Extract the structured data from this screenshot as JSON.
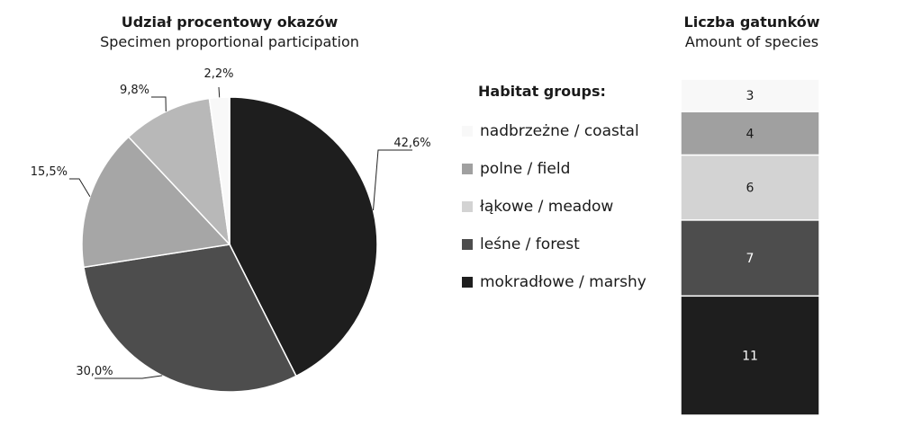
{
  "pie_title": {
    "main": "Udział procentowy okazów",
    "sub": "Specimen proportional participation"
  },
  "bar_title": {
    "main": "Liczba gatunków",
    "sub": "Amount of species"
  },
  "legend": {
    "title": "Habitat groups:",
    "items": [
      {
        "label": "nadbrzeżne / coastal",
        "color": "#f8f8f8"
      },
      {
        "label": "polne / field",
        "color": "#a0a0a0"
      },
      {
        "label": "łąkowe / meadow",
        "color": "#d3d3d3"
      },
      {
        "label": "leśne / forest",
        "color": "#4d4d4d"
      },
      {
        "label": "mokradłowe / marshy",
        "color": "#1e1e1e"
      }
    ]
  },
  "chart_data": [
    {
      "type": "pie",
      "title": "Udział procentowy okazów",
      "subtitle": "Specimen proportional participation",
      "labels": [
        "mokradłowe / marshy",
        "leśne / forest",
        "łąkowe / meadow",
        "polne / field",
        "nadbrzeżne / coastal"
      ],
      "values": [
        42.6,
        30.0,
        15.5,
        9.8,
        2.2
      ],
      "value_labels": [
        "42,6%",
        "30,0%",
        "15,5%",
        "9,8%",
        "2,2%"
      ],
      "colors": [
        "#1e1e1e",
        "#4d4d4d",
        "#a6a6a6",
        "#b8b8b8",
        "#f8f8f8"
      ]
    },
    {
      "type": "bar",
      "title": "Liczba gatunków",
      "subtitle": "Amount of species",
      "stacked": true,
      "categories": [
        "mokradłowe / marshy",
        "leśne / forest",
        "łąkowe / meadow",
        "polne / field",
        "nadbrzeżne / coastal"
      ],
      "values": [
        11,
        7,
        6,
        4,
        3
      ],
      "colors": [
        "#1e1e1e",
        "#4d4d4d",
        "#d3d3d3",
        "#a0a0a0",
        "#f8f8f8"
      ]
    }
  ]
}
